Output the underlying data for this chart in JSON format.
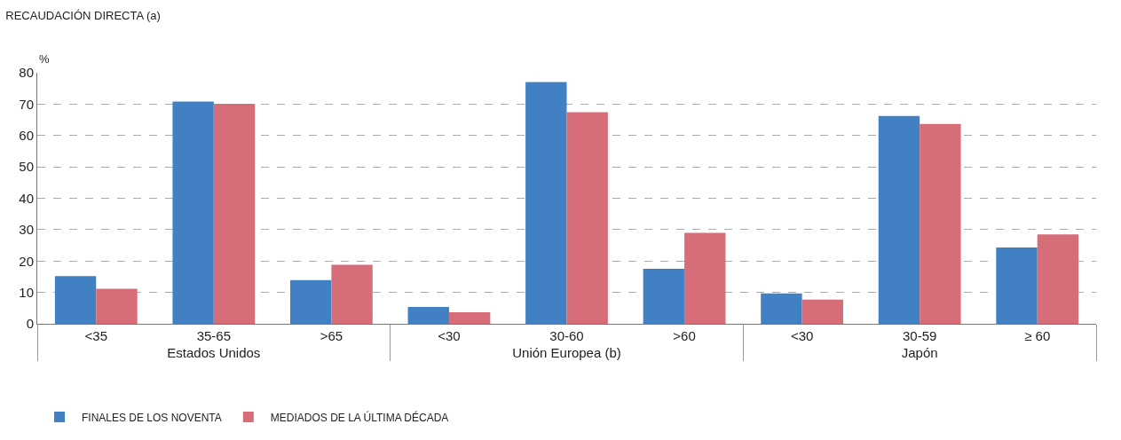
{
  "chart_data": {
    "type": "bar",
    "title": "RECAUDACIÓN DIRECTA (a)",
    "ylabel": "%",
    "categories": [
      "<35",
      "35-65",
      ">65",
      "<30",
      "30-60",
      ">60",
      "<30",
      "30-59",
      "≥ 60"
    ],
    "annotations": [
      "Estados Unidos",
      "Unión Europea (b)",
      "Japón"
    ],
    "series": [
      {
        "name": "FINALES DE LOS NOVENTA",
        "color": "#4180c3",
        "values": [
          15.2,
          70.8,
          13.9,
          5.4,
          77.0,
          17.5,
          9.7,
          66.2,
          24.3
        ]
      },
      {
        "name": "MEDIADOS DE LA ÚLTIMA DÉCADA",
        "color": "#d86d7a",
        "values": [
          11.2,
          70.1,
          18.8,
          3.7,
          67.4,
          29.0,
          7.7,
          63.7,
          28.5
        ]
      }
    ],
    "ylim": [
      0,
      80
    ],
    "yticks": [
      0,
      10,
      20,
      30,
      40,
      50,
      60,
      70,
      80
    ],
    "grid": "y",
    "legend": "bottom left"
  }
}
